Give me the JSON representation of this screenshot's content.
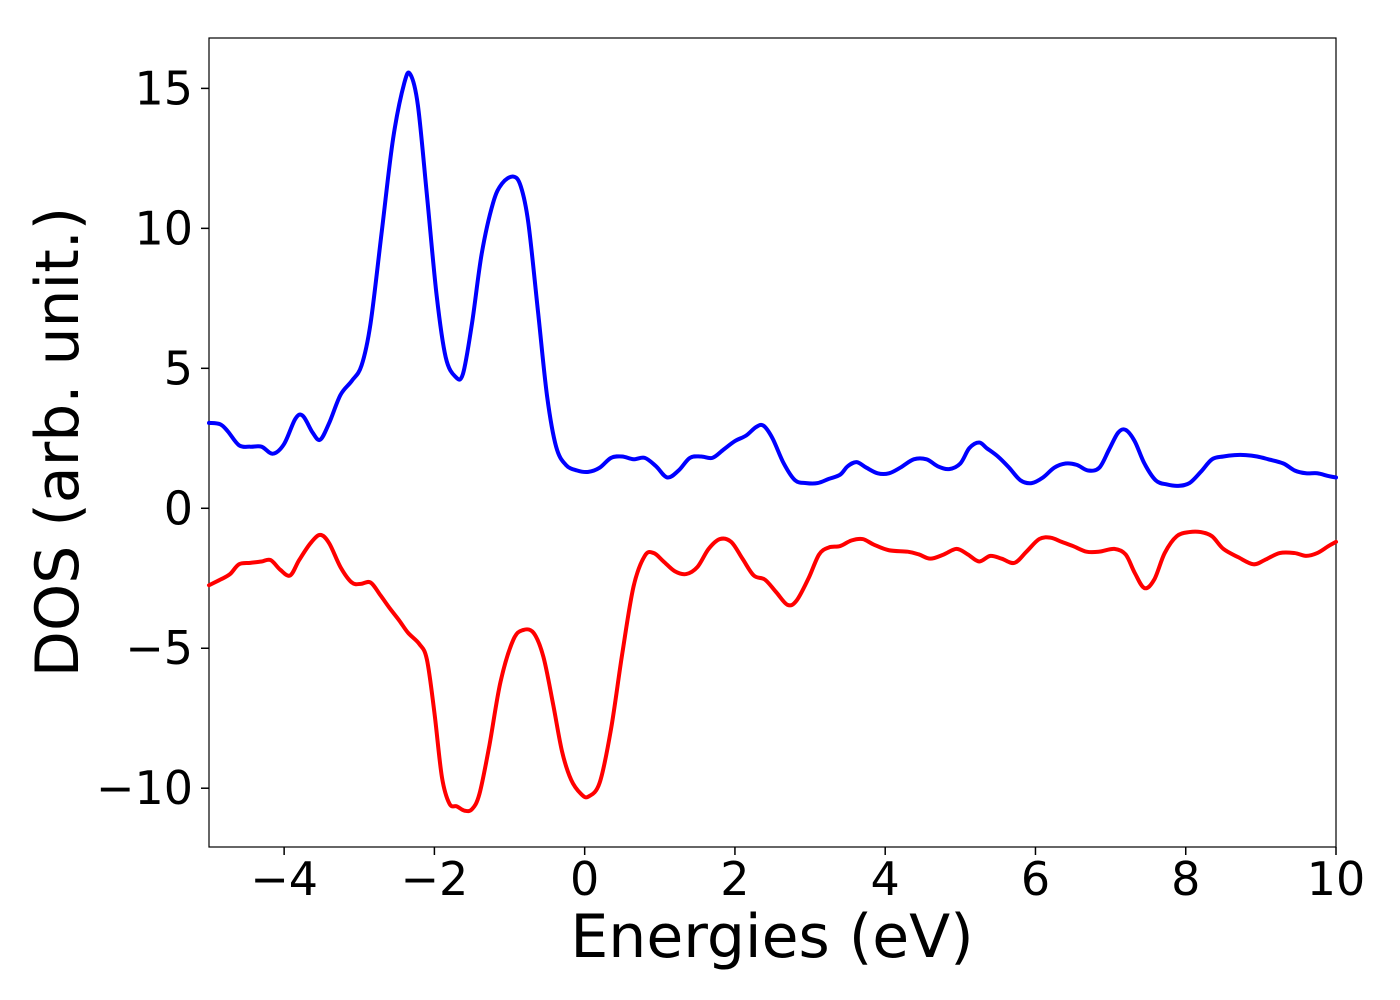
{
  "chart_data": {
    "type": "line",
    "title": "",
    "xlabel": "Energies (eV)",
    "ylabel": "DOS (arb. unit.)",
    "xlim": [
      -5,
      10
    ],
    "ylim": [
      -12.1,
      16.8
    ],
    "grid": false,
    "legend": "none",
    "xticks": [
      -4,
      -2,
      0,
      2,
      4,
      6,
      8,
      10
    ],
    "xtick_labels": [
      "−4",
      "−2",
      "0",
      "2",
      "4",
      "6",
      "8",
      "10"
    ],
    "yticks": [
      -10,
      -5,
      0,
      5,
      10,
      15
    ],
    "ytick_labels": [
      "−10",
      "−5",
      "0",
      "5",
      "10",
      "15"
    ],
    "series": [
      {
        "color": "#0000ff",
        "points": [
          [
            -5.0,
            3.05
          ],
          [
            -4.85,
            3.0
          ],
          [
            -4.75,
            2.75
          ],
          [
            -4.6,
            2.25
          ],
          [
            -4.45,
            2.2
          ],
          [
            -4.3,
            2.2
          ],
          [
            -4.15,
            1.95
          ],
          [
            -4.0,
            2.3
          ],
          [
            -3.85,
            3.2
          ],
          [
            -3.75,
            3.3
          ],
          [
            -3.62,
            2.7
          ],
          [
            -3.52,
            2.45
          ],
          [
            -3.4,
            3.05
          ],
          [
            -3.25,
            4.05
          ],
          [
            -3.1,
            4.55
          ],
          [
            -2.97,
            5.1
          ],
          [
            -2.85,
            6.6
          ],
          [
            -2.7,
            9.9
          ],
          [
            -2.55,
            13.2
          ],
          [
            -2.4,
            15.2
          ],
          [
            -2.32,
            15.5
          ],
          [
            -2.22,
            14.4
          ],
          [
            -2.1,
            11.2
          ],
          [
            -1.97,
            7.6
          ],
          [
            -1.85,
            5.4
          ],
          [
            -1.72,
            4.7
          ],
          [
            -1.62,
            4.8
          ],
          [
            -1.5,
            6.6
          ],
          [
            -1.37,
            9.1
          ],
          [
            -1.22,
            10.9
          ],
          [
            -1.1,
            11.6
          ],
          [
            -0.95,
            11.85
          ],
          [
            -0.85,
            11.5
          ],
          [
            -0.75,
            10.2
          ],
          [
            -0.62,
            7.0
          ],
          [
            -0.5,
            4.0
          ],
          [
            -0.38,
            2.2
          ],
          [
            -0.25,
            1.55
          ],
          [
            -0.1,
            1.35
          ],
          [
            0.05,
            1.3
          ],
          [
            0.2,
            1.45
          ],
          [
            0.35,
            1.8
          ],
          [
            0.5,
            1.85
          ],
          [
            0.65,
            1.75
          ],
          [
            0.8,
            1.8
          ],
          [
            0.95,
            1.5
          ],
          [
            1.1,
            1.1
          ],
          [
            1.25,
            1.35
          ],
          [
            1.4,
            1.8
          ],
          [
            1.55,
            1.85
          ],
          [
            1.7,
            1.8
          ],
          [
            1.85,
            2.1
          ],
          [
            2.0,
            2.4
          ],
          [
            2.15,
            2.6
          ],
          [
            2.28,
            2.9
          ],
          [
            2.38,
            2.95
          ],
          [
            2.5,
            2.5
          ],
          [
            2.65,
            1.6
          ],
          [
            2.8,
            1.0
          ],
          [
            2.95,
            0.9
          ],
          [
            3.1,
            0.9
          ],
          [
            3.25,
            1.05
          ],
          [
            3.4,
            1.2
          ],
          [
            3.5,
            1.5
          ],
          [
            3.62,
            1.65
          ],
          [
            3.75,
            1.45
          ],
          [
            3.9,
            1.25
          ],
          [
            4.05,
            1.25
          ],
          [
            4.2,
            1.45
          ],
          [
            4.38,
            1.75
          ],
          [
            4.55,
            1.75
          ],
          [
            4.7,
            1.5
          ],
          [
            4.85,
            1.4
          ],
          [
            5.0,
            1.6
          ],
          [
            5.12,
            2.15
          ],
          [
            5.25,
            2.35
          ],
          [
            5.35,
            2.15
          ],
          [
            5.5,
            1.85
          ],
          [
            5.65,
            1.45
          ],
          [
            5.8,
            1.0
          ],
          [
            5.95,
            0.9
          ],
          [
            6.1,
            1.1
          ],
          [
            6.25,
            1.45
          ],
          [
            6.4,
            1.6
          ],
          [
            6.55,
            1.55
          ],
          [
            6.7,
            1.35
          ],
          [
            6.85,
            1.45
          ],
          [
            6.98,
            2.1
          ],
          [
            7.1,
            2.7
          ],
          [
            7.2,
            2.8
          ],
          [
            7.32,
            2.4
          ],
          [
            7.45,
            1.6
          ],
          [
            7.6,
            1.0
          ],
          [
            7.75,
            0.85
          ],
          [
            7.9,
            0.8
          ],
          [
            8.05,
            0.9
          ],
          [
            8.2,
            1.3
          ],
          [
            8.35,
            1.75
          ],
          [
            8.5,
            1.85
          ],
          [
            8.65,
            1.9
          ],
          [
            8.8,
            1.9
          ],
          [
            8.95,
            1.85
          ],
          [
            9.1,
            1.75
          ],
          [
            9.3,
            1.6
          ],
          [
            9.45,
            1.35
          ],
          [
            9.6,
            1.25
          ],
          [
            9.75,
            1.25
          ],
          [
            9.9,
            1.15
          ],
          [
            10.0,
            1.1
          ]
        ]
      },
      {
        "color": "#ff0000",
        "points": [
          [
            -5.0,
            -2.75
          ],
          [
            -4.85,
            -2.55
          ],
          [
            -4.72,
            -2.35
          ],
          [
            -4.6,
            -2.0
          ],
          [
            -4.45,
            -1.95
          ],
          [
            -4.3,
            -1.9
          ],
          [
            -4.18,
            -1.85
          ],
          [
            -4.05,
            -2.2
          ],
          [
            -3.92,
            -2.4
          ],
          [
            -3.8,
            -1.85
          ],
          [
            -3.65,
            -1.25
          ],
          [
            -3.52,
            -0.95
          ],
          [
            -3.4,
            -1.25
          ],
          [
            -3.25,
            -2.1
          ],
          [
            -3.1,
            -2.65
          ],
          [
            -2.98,
            -2.7
          ],
          [
            -2.85,
            -2.65
          ],
          [
            -2.72,
            -3.1
          ],
          [
            -2.6,
            -3.55
          ],
          [
            -2.47,
            -4.0
          ],
          [
            -2.35,
            -4.45
          ],
          [
            -2.2,
            -4.85
          ],
          [
            -2.1,
            -5.4
          ],
          [
            -2.0,
            -7.3
          ],
          [
            -1.9,
            -9.6
          ],
          [
            -1.8,
            -10.55
          ],
          [
            -1.7,
            -10.65
          ],
          [
            -1.6,
            -10.8
          ],
          [
            -1.5,
            -10.75
          ],
          [
            -1.4,
            -10.2
          ],
          [
            -1.27,
            -8.5
          ],
          [
            -1.12,
            -6.2
          ],
          [
            -0.95,
            -4.7
          ],
          [
            -0.82,
            -4.35
          ],
          [
            -0.68,
            -4.45
          ],
          [
            -0.55,
            -5.3
          ],
          [
            -0.42,
            -7.0
          ],
          [
            -0.3,
            -8.7
          ],
          [
            -0.18,
            -9.7
          ],
          [
            -0.05,
            -10.2
          ],
          [
            0.05,
            -10.3
          ],
          [
            0.2,
            -9.8
          ],
          [
            0.35,
            -7.9
          ],
          [
            0.5,
            -5.2
          ],
          [
            0.65,
            -2.8
          ],
          [
            0.8,
            -1.7
          ],
          [
            0.92,
            -1.6
          ],
          [
            1.05,
            -1.9
          ],
          [
            1.2,
            -2.25
          ],
          [
            1.35,
            -2.35
          ],
          [
            1.5,
            -2.1
          ],
          [
            1.65,
            -1.45
          ],
          [
            1.8,
            -1.1
          ],
          [
            1.95,
            -1.2
          ],
          [
            2.1,
            -1.8
          ],
          [
            2.25,
            -2.4
          ],
          [
            2.4,
            -2.55
          ],
          [
            2.55,
            -3.0
          ],
          [
            2.7,
            -3.45
          ],
          [
            2.82,
            -3.3
          ],
          [
            2.98,
            -2.5
          ],
          [
            3.12,
            -1.65
          ],
          [
            3.25,
            -1.4
          ],
          [
            3.4,
            -1.35
          ],
          [
            3.55,
            -1.15
          ],
          [
            3.7,
            -1.1
          ],
          [
            3.85,
            -1.3
          ],
          [
            4.05,
            -1.5
          ],
          [
            4.3,
            -1.55
          ],
          [
            4.45,
            -1.65
          ],
          [
            4.6,
            -1.8
          ],
          [
            4.78,
            -1.65
          ],
          [
            4.95,
            -1.45
          ],
          [
            5.1,
            -1.65
          ],
          [
            5.25,
            -1.9
          ],
          [
            5.4,
            -1.7
          ],
          [
            5.55,
            -1.8
          ],
          [
            5.72,
            -1.95
          ],
          [
            5.88,
            -1.55
          ],
          [
            6.05,
            -1.1
          ],
          [
            6.2,
            -1.05
          ],
          [
            6.35,
            -1.2
          ],
          [
            6.5,
            -1.35
          ],
          [
            6.68,
            -1.55
          ],
          [
            6.85,
            -1.55
          ],
          [
            7.05,
            -1.45
          ],
          [
            7.2,
            -1.65
          ],
          [
            7.32,
            -2.3
          ],
          [
            7.45,
            -2.85
          ],
          [
            7.58,
            -2.55
          ],
          [
            7.72,
            -1.6
          ],
          [
            7.88,
            -1.0
          ],
          [
            8.05,
            -0.85
          ],
          [
            8.2,
            -0.85
          ],
          [
            8.35,
            -1.0
          ],
          [
            8.5,
            -1.45
          ],
          [
            8.7,
            -1.75
          ],
          [
            8.9,
            -2.0
          ],
          [
            9.05,
            -1.85
          ],
          [
            9.25,
            -1.6
          ],
          [
            9.45,
            -1.6
          ],
          [
            9.6,
            -1.7
          ],
          [
            9.75,
            -1.6
          ],
          [
            9.9,
            -1.35
          ],
          [
            10.0,
            -1.2
          ]
        ]
      }
    ]
  }
}
